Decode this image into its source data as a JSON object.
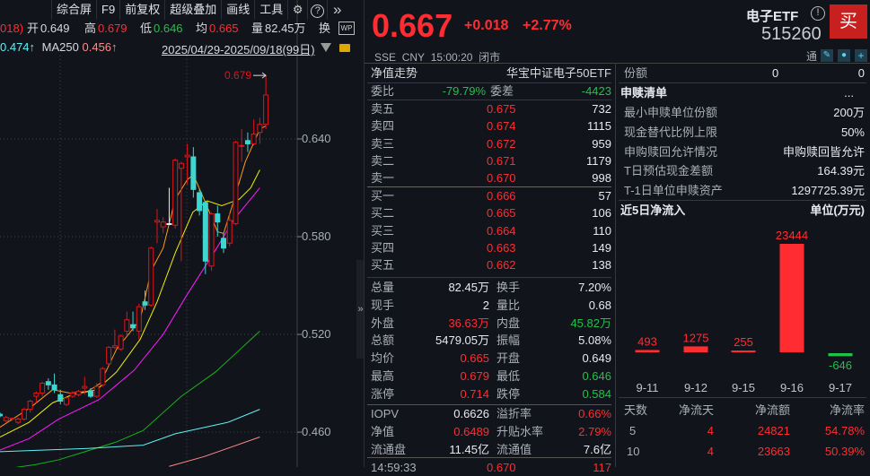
{
  "toolbar": {
    "items": [
      "综合屏",
      "F9",
      "前复权",
      "超级叠加",
      "画线",
      "工具"
    ],
    "icons": [
      "gear-icon",
      "help-icon",
      "double-chevron-right-icon"
    ],
    "help": "?",
    "more": "»"
  },
  "legend": {
    "prev_tail": "018)",
    "open_label": "开",
    "open": "0.649",
    "high_label": "高",
    "high": "0.679",
    "low_label": "低",
    "low": "0.646",
    "avg_label": "均",
    "avg": "0.665",
    "vol_label": "量",
    "vol": "82.45万",
    "turn_label": "换",
    "ma_prev": "0.474↑",
    "ma250_label": "MA250",
    "ma250": "0.456↑",
    "date_range": "2025/04/29-2025/09/18(99日)",
    "wp": "WP"
  },
  "kline": {
    "y_ticks": [
      "0.640",
      "0.580",
      "0.520",
      "0.460"
    ],
    "max_label": "0.679",
    "candles": [
      [
        0.471,
        0.472,
        0.469,
        0.47
      ],
      [
        0.467,
        0.47,
        0.466,
        0.469
      ],
      [
        0.468,
        0.469,
        0.467,
        0.4685
      ],
      [
        0.466,
        0.469,
        0.465,
        0.468
      ],
      [
        0.468,
        0.475,
        0.467,
        0.474
      ],
      [
        0.474,
        0.48,
        0.472,
        0.479
      ],
      [
        0.482,
        0.485,
        0.478,
        0.484
      ],
      [
        0.484,
        0.491,
        0.482,
        0.49
      ],
      [
        0.491,
        0.493,
        0.486,
        0.489
      ],
      [
        0.489,
        0.496,
        0.484,
        0.486
      ],
      [
        0.483,
        0.486,
        0.477,
        0.479
      ],
      [
        0.477,
        0.482,
        0.476,
        0.481
      ],
      [
        0.482,
        0.485,
        0.481,
        0.484
      ],
      [
        0.483,
        0.486,
        0.482,
        0.485
      ],
      [
        0.487,
        0.494,
        0.483,
        0.488
      ],
      [
        0.485,
        0.487,
        0.481,
        0.482
      ],
      [
        0.482,
        0.49,
        0.481,
        0.488
      ],
      [
        0.489,
        0.5,
        0.488,
        0.499
      ],
      [
        0.502,
        0.513,
        0.501,
        0.512
      ],
      [
        0.512,
        0.523,
        0.511,
        0.513
      ],
      [
        0.511,
        0.52,
        0.51,
        0.519
      ],
      [
        0.522,
        0.534,
        0.519,
        0.529
      ],
      [
        0.526,
        0.534,
        0.522,
        0.524
      ],
      [
        0.522,
        0.539,
        0.517,
        0.537
      ],
      [
        0.54,
        0.547,
        0.535,
        0.538
      ],
      [
        0.538,
        0.574,
        0.537,
        0.573
      ],
      [
        0.589,
        0.597,
        0.576,
        0.59
      ],
      [
        0.586,
        0.592,
        0.582,
        0.589
      ],
      [
        0.588,
        0.61,
        0.588,
        0.588
      ],
      [
        0.587,
        0.628,
        0.585,
        0.627
      ],
      [
        0.622,
        0.626,
        0.565,
        0.625
      ],
      [
        0.629,
        0.637,
        0.612,
        0.63
      ],
      [
        0.629,
        0.635,
        0.604,
        0.609
      ],
      [
        0.607,
        0.609,
        0.593,
        0.596
      ],
      [
        0.601,
        0.602,
        0.557,
        0.565
      ],
      [
        0.562,
        0.595,
        0.559,
        0.594
      ],
      [
        0.594,
        0.599,
        0.58,
        0.589
      ],
      [
        0.579,
        0.582,
        0.57,
        0.573
      ],
      [
        0.576,
        0.594,
        0.574,
        0.59
      ],
      [
        0.588,
        0.639,
        0.587,
        0.638
      ],
      [
        0.636,
        0.646,
        0.626,
        0.636
      ],
      [
        0.639,
        0.644,
        0.632,
        0.637
      ],
      [
        0.637,
        0.652,
        0.636,
        0.643
      ],
      [
        0.644,
        0.653,
        0.637,
        0.649
      ],
      [
        0.649,
        0.679,
        0.646,
        0.667
      ]
    ],
    "ma_lines": [
      {
        "color": "#ff9a1a",
        "points": [
          [
            1,
            0.463
          ],
          [
            6,
            0.475
          ],
          [
            9.7,
            0.486
          ],
          [
            12.6,
            0.484
          ],
          [
            15.5,
            0.485
          ],
          [
            17.6,
            0.49
          ],
          [
            20.3,
            0.511
          ],
          [
            24.2,
            0.529
          ],
          [
            26,
            0.559
          ],
          [
            28,
            0.573
          ],
          [
            30,
            0.603
          ],
          [
            32,
            0.615
          ],
          [
            33,
            0.618
          ],
          [
            35,
            0.601
          ],
          [
            37,
            0.583
          ],
          [
            38,
            0.582
          ],
          [
            39.6,
            0.601
          ],
          [
            41.6,
            0.626
          ],
          [
            44,
            0.646
          ],
          [
            45,
            0.648
          ]
        ]
      },
      {
        "color": "#f5f000",
        "points": [
          [
            1,
            0.457
          ],
          [
            5.8,
            0.466
          ],
          [
            9.7,
            0.478
          ],
          [
            13,
            0.483
          ],
          [
            17,
            0.486
          ],
          [
            20.3,
            0.497
          ],
          [
            24.2,
            0.517
          ],
          [
            27,
            0.54
          ],
          [
            30,
            0.57
          ],
          [
            32.9,
            0.595
          ],
          [
            35.3,
            0.602
          ],
          [
            37.7,
            0.599
          ],
          [
            40.6,
            0.603
          ],
          [
            42.5,
            0.61
          ],
          [
            44,
            0.621
          ]
        ]
      },
      {
        "color": "#ff1aff",
        "points": [
          [
            1,
            0.449
          ],
          [
            5.8,
            0.456
          ],
          [
            10.7,
            0.468
          ],
          [
            17.4,
            0.48
          ],
          [
            23.2,
            0.498
          ],
          [
            28,
            0.52
          ],
          [
            31.9,
            0.544
          ],
          [
            36.7,
            0.572
          ],
          [
            39.6,
            0.59
          ],
          [
            44,
            0.61
          ]
        ]
      },
      {
        "color": "#19b319",
        "points": [
          [
            1,
            0.437
          ],
          [
            6.8,
            0.44
          ],
          [
            10.7,
            0.443
          ],
          [
            20.3,
            0.454
          ],
          [
            24.7,
            0.461
          ],
          [
            31,
            0.482
          ],
          [
            36.7,
            0.497
          ],
          [
            44,
            0.522
          ]
        ]
      },
      {
        "color": "#5ff0f5",
        "points": [
          [
            1,
            0.448
          ],
          [
            15.5,
            0.45
          ],
          [
            24.7,
            0.452
          ],
          [
            30,
            0.459
          ],
          [
            38.7,
            0.466
          ],
          [
            44,
            0.474
          ]
        ]
      },
      {
        "color": "#ff8a8a",
        "points": [
          [
            29,
            0.439
          ],
          [
            34.8,
            0.445
          ],
          [
            44,
            0.457
          ]
        ]
      }
    ]
  },
  "quote": {
    "price": "0.667",
    "change": "+0.018",
    "change_pct": "+2.77%",
    "name": "电子ETF",
    "code": "515260",
    "buy": "买",
    "exchange": "SSE",
    "currency": "CNY",
    "time": "15:00:20",
    "status": "闭市",
    "tong": "通"
  },
  "nav": {
    "label": "净值走势",
    "fund_name": "华宝中证电子50ETF"
  },
  "order_ratio": {
    "label": "委比",
    "value": "-79.79%",
    "diff_label": "委差",
    "diff": "-4423"
  },
  "asks": [
    {
      "label": "卖五",
      "price": "0.675",
      "vol": "732"
    },
    {
      "label": "卖四",
      "price": "0.674",
      "vol": "1115"
    },
    {
      "label": "卖三",
      "price": "0.672",
      "vol": "959"
    },
    {
      "label": "卖二",
      "price": "0.671",
      "vol": "1179"
    },
    {
      "label": "卖一",
      "price": "0.670",
      "vol": "998"
    }
  ],
  "bids": [
    {
      "label": "买一",
      "price": "0.666",
      "vol": "57"
    },
    {
      "label": "买二",
      "price": "0.665",
      "vol": "106"
    },
    {
      "label": "买三",
      "price": "0.664",
      "vol": "110"
    },
    {
      "label": "买四",
      "price": "0.663",
      "vol": "149"
    },
    {
      "label": "买五",
      "price": "0.662",
      "vol": "138"
    }
  ],
  "stats": [
    {
      "l1": "总量",
      "v1": "82.45万",
      "c1": "white",
      "l2": "换手",
      "v2": "7.20%",
      "c2": "white"
    },
    {
      "l1": "现手",
      "v1": "2",
      "c1": "white",
      "l2": "量比",
      "v2": "0.68",
      "c2": "white"
    },
    {
      "l1": "外盘",
      "v1": "36.63万",
      "c1": "red",
      "l2": "内盘",
      "v2": "45.82万",
      "c2": "green"
    },
    {
      "l1": "总额",
      "v1": "5479.05万",
      "c1": "white",
      "l2": "振幅",
      "v2": "5.08%",
      "c2": "white"
    },
    {
      "l1": "均价",
      "v1": "0.665",
      "c1": "red",
      "l2": "开盘",
      "v2": "0.649",
      "c2": "white"
    },
    {
      "l1": "最高",
      "v1": "0.679",
      "c1": "red",
      "l2": "最低",
      "v2": "0.646",
      "c2": "green"
    },
    {
      "l1": "涨停",
      "v1": "0.714",
      "c1": "red",
      "l2": "跌停",
      "v2": "0.584",
      "c2": "green"
    }
  ],
  "etf_stats": [
    {
      "l1": "IOPV",
      "v1": "0.6626",
      "c1": "white",
      "l2": "溢折率",
      "v2": "0.66%",
      "c2": "red"
    },
    {
      "l1": "净值",
      "v1": "0.6489",
      "c1": "red",
      "l2": "升贴水率",
      "v2": "2.79%",
      "c2": "red"
    },
    {
      "l1": "流通盘",
      "v1": "11.45亿",
      "c1": "white",
      "l2": "流通值",
      "v2": "7.6亿",
      "c2": "white"
    }
  ],
  "last_trade": {
    "time": "14:59:33",
    "price": "0.670",
    "vol": "117"
  },
  "shares": {
    "label": "份额",
    "v1": "0",
    "v2": "0"
  },
  "creation": {
    "title": "申赎清单",
    "more": "...",
    "rows": [
      {
        "label": "最小申赎单位份额",
        "value": "200万"
      },
      {
        "label": "现金替代比例上限",
        "value": "50%"
      },
      {
        "label": "申购赎回允许情况",
        "value": "申购赎回皆允许"
      },
      {
        "label": "T日预估现金差额",
        "value": "164.39元"
      },
      {
        "label": "T-1日单位申赎资产",
        "value": "1297725.39元"
      }
    ]
  },
  "netflow": {
    "title": "近5日净流入",
    "unit": "单位(万元)",
    "dates": [
      "9-11",
      "9-12",
      "9-15",
      "9-16",
      "9-17"
    ],
    "values": [
      493,
      1275,
      255,
      23444,
      -646
    ],
    "labels": [
      "493",
      "1275",
      "255",
      "23444",
      "-646"
    ],
    "up_color": "#ff2d32",
    "down_color": "#1fc24a",
    "table": {
      "headers": [
        "天数",
        "净流天",
        "净流额",
        "净流率"
      ],
      "rows": [
        [
          "5",
          "4",
          "24821",
          "54.78%"
        ],
        [
          "10",
          "4",
          "23663",
          "50.39%"
        ]
      ]
    }
  }
}
